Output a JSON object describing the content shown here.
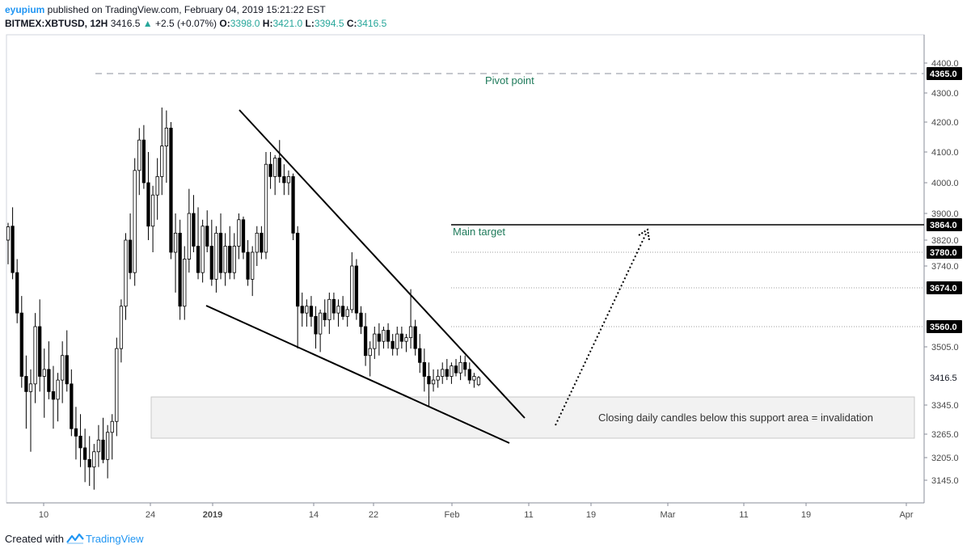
{
  "header": {
    "author": "eyupium",
    "published": " published on TradingView.com, February 04, 2019 15:21:22 EST",
    "symbol": "BITMEX:XBTUSD, 12H",
    "last": "3416.5",
    "change_arrow": "▲",
    "change": "+2.5 (+0.07%)",
    "o_label": "O:",
    "o_value": "3398.0",
    "h_label": "H:",
    "h_value": "3421.0",
    "l_label": "L:",
    "l_value": "3394.5",
    "c_label": "C:",
    "c_value": "3416.5"
  },
  "footer": {
    "created_with": "Created with",
    "brand": "TradingView"
  },
  "annotations": {
    "pivot_point": "Pivot point",
    "main_target": "Main target",
    "support_note": "Closing daily candles below this support area = invalidation"
  },
  "colors": {
    "candle": "#000000",
    "label_green": "#1e7a5a",
    "brand_blue": "#2196f3",
    "support_fill": "#f2f2f2",
    "pivot_dash": "#b2b5be"
  },
  "chart_data": {
    "type": "candlestick",
    "y_ticks": [
      "4400.0",
      "4300.0",
      "4200.0",
      "4100.0",
      "4000.0",
      "3900.0",
      "3820.0",
      "3740.0",
      "3505.0",
      "3345.0",
      "3265.0",
      "3205.0",
      "3145.0"
    ],
    "x_ticks": [
      "10",
      "24",
      "2019",
      "14",
      "22",
      "Feb",
      "11",
      "19",
      "Mar",
      "11",
      "19",
      "Apr"
    ],
    "price_badges": [
      {
        "label": "4365.0",
        "style": "dark"
      },
      {
        "label": "3864.0",
        "style": "dark"
      },
      {
        "label": "3780.0",
        "style": "dark"
      },
      {
        "label": "3674.0",
        "style": "dark"
      },
      {
        "label": "3560.0",
        "style": "dark"
      },
      {
        "label": "3416.5",
        "style": "plain"
      }
    ],
    "levels": {
      "pivot": 4365,
      "main_target": 3864,
      "targets": [
        3780,
        3674,
        3560
      ],
      "support_zone": [
        3235,
        3370
      ]
    },
    "last_price": 3416.5,
    "price_range_visible": [
      3100,
      4450
    ],
    "ohlc": [
      [
        3820,
        3870,
        3745,
        3858
      ],
      [
        3860,
        3920,
        3700,
        3720
      ],
      [
        3720,
        3760,
        3570,
        3600
      ],
      [
        3600,
        3650,
        3390,
        3420
      ],
      [
        3420,
        3480,
        3280,
        3380
      ],
      [
        3380,
        3440,
        3220,
        3400
      ],
      [
        3400,
        3600,
        3350,
        3560
      ],
      [
        3560,
        3640,
        3380,
        3420
      ],
      [
        3420,
        3500,
        3310,
        3440
      ],
      [
        3440,
        3520,
        3360,
        3380
      ],
      [
        3380,
        3450,
        3280,
        3360
      ],
      [
        3360,
        3430,
        3300,
        3410
      ],
      [
        3410,
        3520,
        3350,
        3480
      ],
      [
        3480,
        3550,
        3380,
        3400
      ],
      [
        3400,
        3440,
        3260,
        3280
      ],
      [
        3280,
        3340,
        3200,
        3260
      ],
      [
        3260,
        3320,
        3180,
        3230
      ],
      [
        3230,
        3280,
        3140,
        3200
      ],
      [
        3200,
        3260,
        3130,
        3180
      ],
      [
        3180,
        3240,
        3120,
        3220
      ],
      [
        3220,
        3290,
        3180,
        3250
      ],
      [
        3250,
        3310,
        3190,
        3200
      ],
      [
        3200,
        3290,
        3150,
        3270
      ],
      [
        3270,
        3320,
        3200,
        3300
      ],
      [
        3300,
        3530,
        3260,
        3500
      ],
      [
        3500,
        3640,
        3460,
        3620
      ],
      [
        3620,
        3840,
        3580,
        3820
      ],
      [
        3820,
        3900,
        3700,
        3720
      ],
      [
        3720,
        4080,
        3680,
        4040
      ],
      [
        4040,
        4180,
        3960,
        4140
      ],
      [
        4140,
        4190,
        3980,
        4000
      ],
      [
        4000,
        4100,
        3820,
        3860
      ],
      [
        3860,
        3990,
        3780,
        3960
      ],
      [
        3960,
        4080,
        3880,
        4020
      ],
      [
        4020,
        4250,
        3960,
        4120
      ],
      [
        4120,
        4240,
        4000,
        4180
      ],
      [
        4180,
        4200,
        3760,
        3780
      ],
      [
        3780,
        3900,
        3660,
        3840
      ],
      [
        3840,
        3880,
        3580,
        3620
      ],
      [
        3620,
        3800,
        3580,
        3760
      ],
      [
        3760,
        3980,
        3720,
        3900
      ],
      [
        3900,
        3960,
        3780,
        3800
      ],
      [
        3800,
        3920,
        3700,
        3720
      ],
      [
        3720,
        3880,
        3690,
        3860
      ],
      [
        3860,
        3910,
        3780,
        3800
      ],
      [
        3800,
        3880,
        3680,
        3700
      ],
      [
        3700,
        3860,
        3660,
        3840
      ],
      [
        3840,
        3900,
        3700,
        3720
      ],
      [
        3720,
        3840,
        3680,
        3800
      ],
      [
        3800,
        3860,
        3700,
        3720
      ],
      [
        3720,
        3840,
        3700,
        3800
      ],
      [
        3800,
        3900,
        3760,
        3880
      ],
      [
        3880,
        3890,
        3760,
        3780
      ],
      [
        3780,
        3820,
        3680,
        3700
      ],
      [
        3700,
        3800,
        3650,
        3780
      ],
      [
        3780,
        3860,
        3740,
        3840
      ],
      [
        3840,
        3860,
        3760,
        3780
      ],
      [
        3780,
        4100,
        3760,
        4060
      ],
      [
        4060,
        4100,
        3980,
        4020
      ],
      [
        4020,
        4090,
        3960,
        4080
      ],
      [
        4080,
        4140,
        4000,
        4020
      ],
      [
        4020,
        4060,
        3960,
        4000
      ],
      [
        4000,
        4040,
        3960,
        4020
      ],
      [
        4020,
        4030,
        3820,
        3840
      ],
      [
        3840,
        3860,
        3500,
        3620
      ],
      [
        3620,
        3660,
        3560,
        3600
      ],
      [
        3600,
        3640,
        3560,
        3620
      ],
      [
        3620,
        3650,
        3560,
        3590
      ],
      [
        3590,
        3620,
        3500,
        3540
      ],
      [
        3540,
        3610,
        3490,
        3600
      ],
      [
        3600,
        3640,
        3560,
        3580
      ],
      [
        3580,
        3660,
        3540,
        3640
      ],
      [
        3640,
        3660,
        3580,
        3600
      ],
      [
        3600,
        3640,
        3560,
        3620
      ],
      [
        3620,
        3650,
        3580,
        3590
      ],
      [
        3590,
        3620,
        3560,
        3610
      ],
      [
        3610,
        3780,
        3600,
        3740
      ],
      [
        3740,
        3760,
        3580,
        3600
      ],
      [
        3600,
        3620,
        3540,
        3560
      ],
      [
        3560,
        3600,
        3450,
        3480
      ],
      [
        3480,
        3520,
        3420,
        3500
      ],
      [
        3500,
        3560,
        3470,
        3540
      ],
      [
        3540,
        3570,
        3480,
        3520
      ],
      [
        3520,
        3560,
        3500,
        3550
      ],
      [
        3550,
        3570,
        3500,
        3520
      ],
      [
        3520,
        3540,
        3480,
        3500
      ],
      [
        3500,
        3560,
        3480,
        3540
      ],
      [
        3540,
        3560,
        3500,
        3520
      ],
      [
        3520,
        3540,
        3490,
        3530
      ],
      [
        3530,
        3670,
        3500,
        3560
      ],
      [
        3560,
        3580,
        3480,
        3500
      ],
      [
        3500,
        3540,
        3430,
        3460
      ],
      [
        3460,
        3500,
        3380,
        3420
      ],
      [
        3420,
        3460,
        3340,
        3400
      ],
      [
        3400,
        3440,
        3380,
        3410
      ],
      [
        3410,
        3440,
        3390,
        3420
      ],
      [
        3420,
        3460,
        3400,
        3440
      ],
      [
        3440,
        3470,
        3410,
        3420
      ],
      [
        3420,
        3460,
        3400,
        3450
      ],
      [
        3450,
        3470,
        3420,
        3430
      ],
      [
        3430,
        3480,
        3410,
        3460
      ],
      [
        3460,
        3480,
        3420,
        3440
      ],
      [
        3440,
        3460,
        3400,
        3410
      ],
      [
        3410,
        3430,
        3390,
        3420
      ],
      [
        3398,
        3421,
        3394.5,
        3416.5
      ]
    ]
  }
}
